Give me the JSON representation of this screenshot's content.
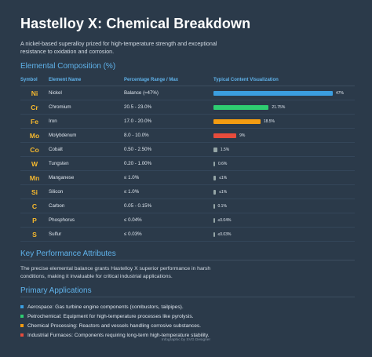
{
  "title": "Hastelloy X: Chemical Breakdown",
  "description": "A nickel-based superalloy prized for high-temperature strength and exceptional resistance to oxidation and corrosion.",
  "composition": {
    "heading": "Elemental Composition (%)",
    "columns": [
      "Symbol",
      "Element Name",
      "Percentage Range / Max",
      "Typical Content Visualization"
    ],
    "rows": [
      {
        "symbol": "Ni",
        "name": "Nickel",
        "range": "Balance (≈47%)",
        "typical": 47,
        "label": "47%",
        "color": "#3b9ee0"
      },
      {
        "symbol": "Cr",
        "name": "Chromium",
        "range": "20.5 - 23.0%",
        "typical": 21.75,
        "label": "21.75%",
        "color": "#2ecc71"
      },
      {
        "symbol": "Fe",
        "name": "Iron",
        "range": "17.0 - 20.0%",
        "typical": 18.5,
        "label": "18.5%",
        "color": "#f39c12"
      },
      {
        "symbol": "Mo",
        "name": "Molybdenum",
        "range": "8.0 - 10.0%",
        "typical": 9,
        "label": "9%",
        "color": "#e74c3c"
      },
      {
        "symbol": "Co",
        "name": "Cobalt",
        "range": "0.50 - 2.50%",
        "typical": 1.5,
        "label": "1.5%",
        "color": "#95a5a6"
      },
      {
        "symbol": "W",
        "name": "Tungsten",
        "range": "0.20 - 1.00%",
        "typical": 0.6,
        "label": "0.6%",
        "color": "#95a5a6"
      },
      {
        "symbol": "Mn",
        "name": "Manganese",
        "range": "≤ 1.0%",
        "typical": 1,
        "label": "≤1%",
        "color": "#95a5a6"
      },
      {
        "symbol": "Si",
        "name": "Silicon",
        "range": "≤ 1.0%",
        "typical": 1,
        "label": "≤1%",
        "color": "#95a5a6"
      },
      {
        "symbol": "C",
        "name": "Carbon",
        "range": "0.05 - 0.15%",
        "typical": 0.1,
        "label": "0.1%",
        "color": "#95a5a6"
      },
      {
        "symbol": "P",
        "name": "Phosphorus",
        "range": "≤ 0.04%",
        "typical": 0.04,
        "label": "≤0.04%",
        "color": "#95a5a6"
      },
      {
        "symbol": "S",
        "name": "Sulfur",
        "range": "≤ 0.03%",
        "typical": 0.03,
        "label": "≤0.03%",
        "color": "#95a5a6"
      }
    ]
  },
  "performance": {
    "heading": "Key Performance Attributes",
    "text": "The precise elemental balance grants Hastelloy X superior performance in harsh conditions, making it invaluable for critical industrial applications."
  },
  "applications": {
    "heading": "Primary Applications",
    "items": [
      {
        "text": "Aerospace: Gas turbine engine components (combustors, tailpipes).",
        "color": "#3b9ee0"
      },
      {
        "text": "Petrochemical: Equipment for high-temperature processes like pyrolysis.",
        "color": "#2ecc71"
      },
      {
        "text": "Chemical Processing: Reactors and vessels handling corrosive substances.",
        "color": "#f39c12"
      },
      {
        "text": "Industrial Furnaces: Components requiring long-term high-temperature stability.",
        "color": "#e74c3c"
      }
    ]
  },
  "footer": "Infographic by SVG Designer"
}
